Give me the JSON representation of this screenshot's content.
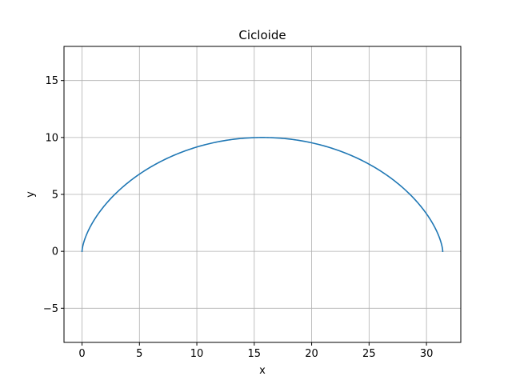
{
  "chart_data": {
    "type": "line",
    "title": "Cicloide",
    "xlabel": "x",
    "ylabel": "y",
    "xlim": [
      -1.57,
      32.99
    ],
    "ylim": [
      -8,
      18
    ],
    "xticks": [
      0,
      5,
      10,
      15,
      20,
      25,
      30
    ],
    "yticks": [
      -5,
      0,
      5,
      10,
      15
    ],
    "xtick_labels": [
      "0",
      "5",
      "10",
      "15",
      "20",
      "25",
      "30"
    ],
    "ytick_labels": [
      "−5",
      "0",
      "5",
      "10",
      "15"
    ],
    "grid": true,
    "series": [
      {
        "color": "#1f77b4",
        "parametric": {
          "r": 5,
          "t_start": 0,
          "t_end": 6.283185307179586,
          "x": "r*(t - sin t)",
          "y": "r*(1 - cos t)"
        },
        "x": [
          0.0,
          0.42,
          1.51,
          3.01,
          4.83,
          6.65,
          8.62,
          10.56,
          12.55,
          14.7,
          15.71,
          16.71,
          18.86,
          20.85,
          22.79,
          24.76,
          26.58,
          28.4,
          29.9,
          30.99,
          31.42
        ],
        "y": [
          0.0,
          2.5,
          5.0,
          6.6,
          7.9,
          8.75,
          9.35,
          9.72,
          9.93,
          10.0,
          10.0,
          9.99,
          9.93,
          9.72,
          9.35,
          8.75,
          7.9,
          6.6,
          5.0,
          2.5,
          0.0
        ]
      }
    ]
  }
}
